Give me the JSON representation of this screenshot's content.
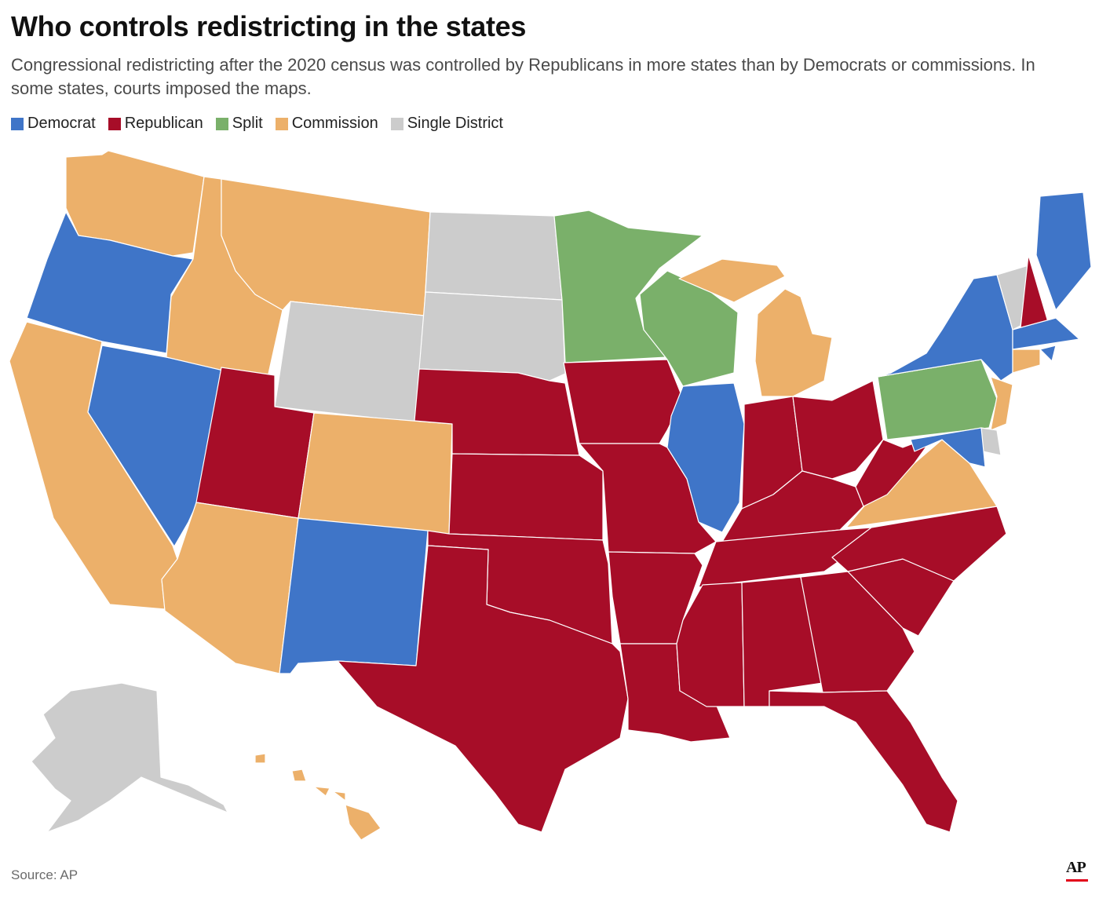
{
  "title": "Who controls redistricting in the states",
  "subtitle": "Congressional redistricting after the 2020 census was controlled by Republicans in more states than by Democrats or commissions. In some states, courts imposed the maps.",
  "legend": [
    {
      "key": "democrat",
      "label": "Democrat",
      "color": "#3f75c8"
    },
    {
      "key": "republican",
      "label": "Republican",
      "color": "#a70d28"
    },
    {
      "key": "split",
      "label": "Split",
      "color": "#7ab06a"
    },
    {
      "key": "commission",
      "label": "Commission",
      "color": "#ecb06a"
    },
    {
      "key": "single",
      "label": "Single District",
      "color": "#cccccc"
    }
  ],
  "states": [
    {
      "name": "Washington",
      "control": "commission"
    },
    {
      "name": "Oregon",
      "control": "democrat"
    },
    {
      "name": "California",
      "control": "commission"
    },
    {
      "name": "Nevada",
      "control": "democrat"
    },
    {
      "name": "Idaho",
      "control": "commission"
    },
    {
      "name": "Montana",
      "control": "commission"
    },
    {
      "name": "Wyoming",
      "control": "single"
    },
    {
      "name": "Utah",
      "control": "republican"
    },
    {
      "name": "Arizona",
      "control": "commission"
    },
    {
      "name": "Colorado",
      "control": "commission"
    },
    {
      "name": "New Mexico",
      "control": "democrat"
    },
    {
      "name": "North Dakota",
      "control": "single"
    },
    {
      "name": "South Dakota",
      "control": "single"
    },
    {
      "name": "Nebraska",
      "control": "republican"
    },
    {
      "name": "Kansas",
      "control": "republican"
    },
    {
      "name": "Oklahoma",
      "control": "republican"
    },
    {
      "name": "Texas",
      "control": "republican"
    },
    {
      "name": "Minnesota",
      "control": "split"
    },
    {
      "name": "Iowa",
      "control": "republican"
    },
    {
      "name": "Missouri",
      "control": "republican"
    },
    {
      "name": "Arkansas",
      "control": "republican"
    },
    {
      "name": "Louisiana",
      "control": "republican"
    },
    {
      "name": "Wisconsin",
      "control": "split"
    },
    {
      "name": "Illinois",
      "control": "democrat"
    },
    {
      "name": "Michigan",
      "control": "commission"
    },
    {
      "name": "Indiana",
      "control": "republican"
    },
    {
      "name": "Ohio",
      "control": "republican"
    },
    {
      "name": "Kentucky",
      "control": "republican"
    },
    {
      "name": "Tennessee",
      "control": "republican"
    },
    {
      "name": "Mississippi",
      "control": "republican"
    },
    {
      "name": "Alabama",
      "control": "republican"
    },
    {
      "name": "Georgia",
      "control": "republican"
    },
    {
      "name": "Florida",
      "control": "republican"
    },
    {
      "name": "South Carolina",
      "control": "republican"
    },
    {
      "name": "North Carolina",
      "control": "republican"
    },
    {
      "name": "Virginia",
      "control": "commission"
    },
    {
      "name": "West Virginia",
      "control": "republican"
    },
    {
      "name": "Pennsylvania",
      "control": "split"
    },
    {
      "name": "New York",
      "control": "democrat"
    },
    {
      "name": "Vermont",
      "control": "single"
    },
    {
      "name": "New Hampshire",
      "control": "republican"
    },
    {
      "name": "Maine",
      "control": "democrat"
    },
    {
      "name": "Massachusetts",
      "control": "democrat"
    },
    {
      "name": "Rhode Island",
      "control": "democrat"
    },
    {
      "name": "Connecticut",
      "control": "commission"
    },
    {
      "name": "New Jersey",
      "control": "commission"
    },
    {
      "name": "Delaware",
      "control": "single"
    },
    {
      "name": "Maryland",
      "control": "democrat"
    },
    {
      "name": "Alaska",
      "control": "single"
    },
    {
      "name": "Hawaii",
      "control": "commission"
    }
  ],
  "source": "Source: AP",
  "logo": "AP"
}
